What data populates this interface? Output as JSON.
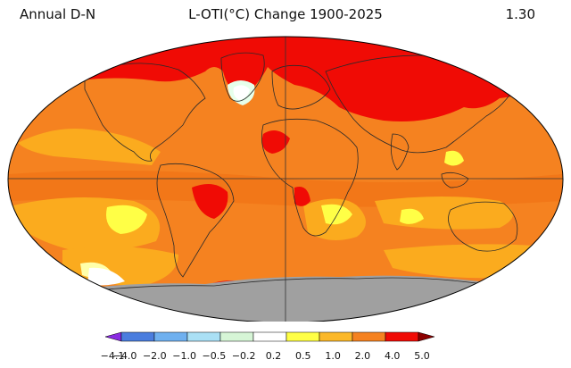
{
  "header": {
    "left_label": "Annual D-N",
    "title": "L-OTI(°C) Change 1900-2025",
    "right_value": "1.30"
  },
  "colors": {
    "land_fill": "#f58220",
    "dark_orange": "#f07818",
    "light_orange": "#fbab1e",
    "yellow": "#ffff46",
    "red": "#f00b05",
    "light_blue": "#e6ffeb",
    "gray": "#a0a0a0",
    "coastline": "#2a2a2a"
  },
  "legend": {
    "colors": [
      "#8a2be2",
      "#4a7dde",
      "#6fb0ef",
      "#aae0f5",
      "#d6f5d6",
      "#ffffff",
      "#ffff46",
      "#fbb829",
      "#f58220",
      "#f00b05",
      "#8b0000"
    ],
    "ticks": [
      "−4.1",
      "−4.0",
      "−2.0",
      "−1.0",
      "−0.5",
      "−0.2",
      "0.2",
      "0.5",
      "1.0",
      "2.0",
      "4.0",
      "5.0"
    ]
  }
}
